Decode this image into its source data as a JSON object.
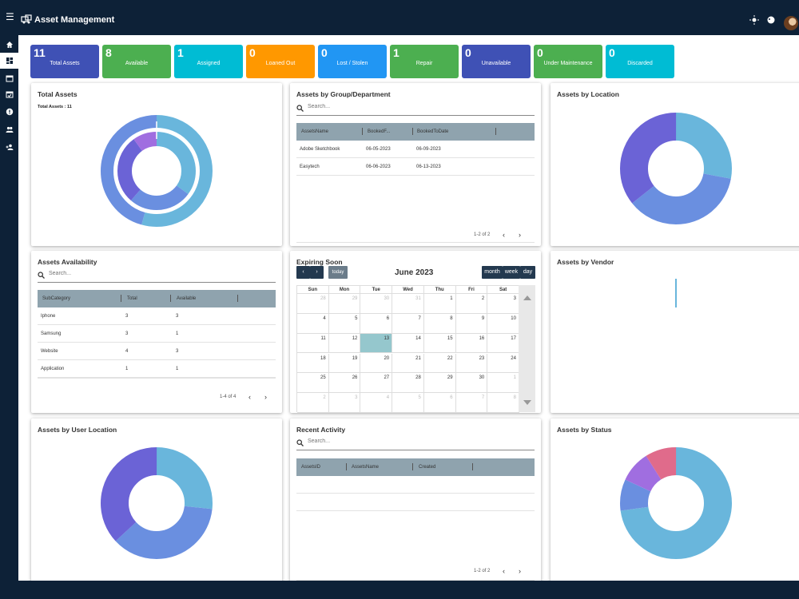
{
  "app": {
    "title": "Asset Management"
  },
  "colors": {
    "navy": "#0d2137",
    "indigo": "#3f51b5",
    "green": "#4caf50",
    "cyan": "#00bcd4",
    "orange": "#ff9800",
    "blue": "#2196f3",
    "sky": "#69b6dc",
    "periwinkle": "#6a8fe0",
    "violet": "#6b63d6",
    "purple": "#a06ee0",
    "pink": "#e06b8b"
  },
  "sidebar": {
    "items": [
      {
        "icon": "home-icon"
      },
      {
        "icon": "dashboard-icon",
        "active": true
      },
      {
        "icon": "calendar-icon"
      },
      {
        "icon": "calendar-check-icon"
      },
      {
        "icon": "alert-icon"
      },
      {
        "icon": "people-icon"
      },
      {
        "icon": "person-add-icon"
      }
    ]
  },
  "stats": [
    {
      "value": "11",
      "label": "Total Assets",
      "color": "#3f51b5"
    },
    {
      "value": "8",
      "label": "Available",
      "color": "#4caf50"
    },
    {
      "value": "1",
      "label": "Assigned",
      "color": "#00bcd4"
    },
    {
      "value": "0",
      "label": "Loaned Out",
      "color": "#ff9800"
    },
    {
      "value": "0",
      "label": "Lost / Stolen",
      "color": "#2196f3"
    },
    {
      "value": "1",
      "label": "Repair",
      "color": "#4caf50"
    },
    {
      "value": "0",
      "label": "Unavailable",
      "color": "#3f51b5"
    },
    {
      "value": "0",
      "label": "Under Maintenance",
      "color": "#4caf50"
    },
    {
      "value": "0",
      "label": "Discarded",
      "color": "#00bcd4"
    }
  ],
  "panels": {
    "total_assets": {
      "title": "Total Assets",
      "subtitle": "Total Assets : 11"
    },
    "by_group": {
      "title": "Assets by Group/Department",
      "search_placeholder": "Search...",
      "columns": [
        "AssetsName",
        "BookedF...",
        "BookedToDate"
      ],
      "rows": [
        [
          "Adobe Sketchbook",
          "06-05-2023",
          "06-09-2023"
        ],
        [
          "Easytech",
          "06-06-2023",
          "06-13-2023"
        ]
      ],
      "pager": "1-2 of 2"
    },
    "by_location": {
      "title": "Assets by Location"
    },
    "availability": {
      "title": "Assets Availability",
      "search_placeholder": "Search...",
      "columns": [
        "SubCategory",
        "Total",
        "Available"
      ],
      "rows": [
        [
          "Iphone",
          "3",
          "3"
        ],
        [
          "Samsung",
          "3",
          "1"
        ],
        [
          "Website",
          "4",
          "3"
        ],
        [
          "Application",
          "1",
          "1"
        ]
      ],
      "pager": "1-4 of 4"
    },
    "expiring": {
      "title": "Expiring Soon",
      "month": "June 2023",
      "today_label": "today",
      "views": [
        "month",
        "week",
        "day"
      ],
      "weekdays": [
        "Sun",
        "Mon",
        "Tue",
        "Wed",
        "Thu",
        "Fri",
        "Sat"
      ],
      "weeks": [
        [
          "28",
          "29",
          "30",
          "31",
          "1",
          "2",
          "3"
        ],
        [
          "4",
          "5",
          "6",
          "7",
          "8",
          "9",
          "10"
        ],
        [
          "11",
          "12",
          "13",
          "14",
          "15",
          "16",
          "17"
        ],
        [
          "18",
          "19",
          "20",
          "21",
          "22",
          "23",
          "24"
        ],
        [
          "25",
          "26",
          "27",
          "28",
          "29",
          "30",
          "1"
        ],
        [
          "2",
          "3",
          "4",
          "5",
          "6",
          "7",
          "8"
        ]
      ],
      "today_date": "13"
    },
    "by_vendor": {
      "title": "Assets by Vendor"
    },
    "by_user_location": {
      "title": "Assets by User Location"
    },
    "recent": {
      "title": "Recent Activity",
      "search_placeholder": "Search...",
      "columns": [
        "AssetsID",
        "AssetsName",
        "Created"
      ],
      "pager": "1-2 of 2"
    },
    "by_status": {
      "title": "Assets by Status"
    }
  }
}
